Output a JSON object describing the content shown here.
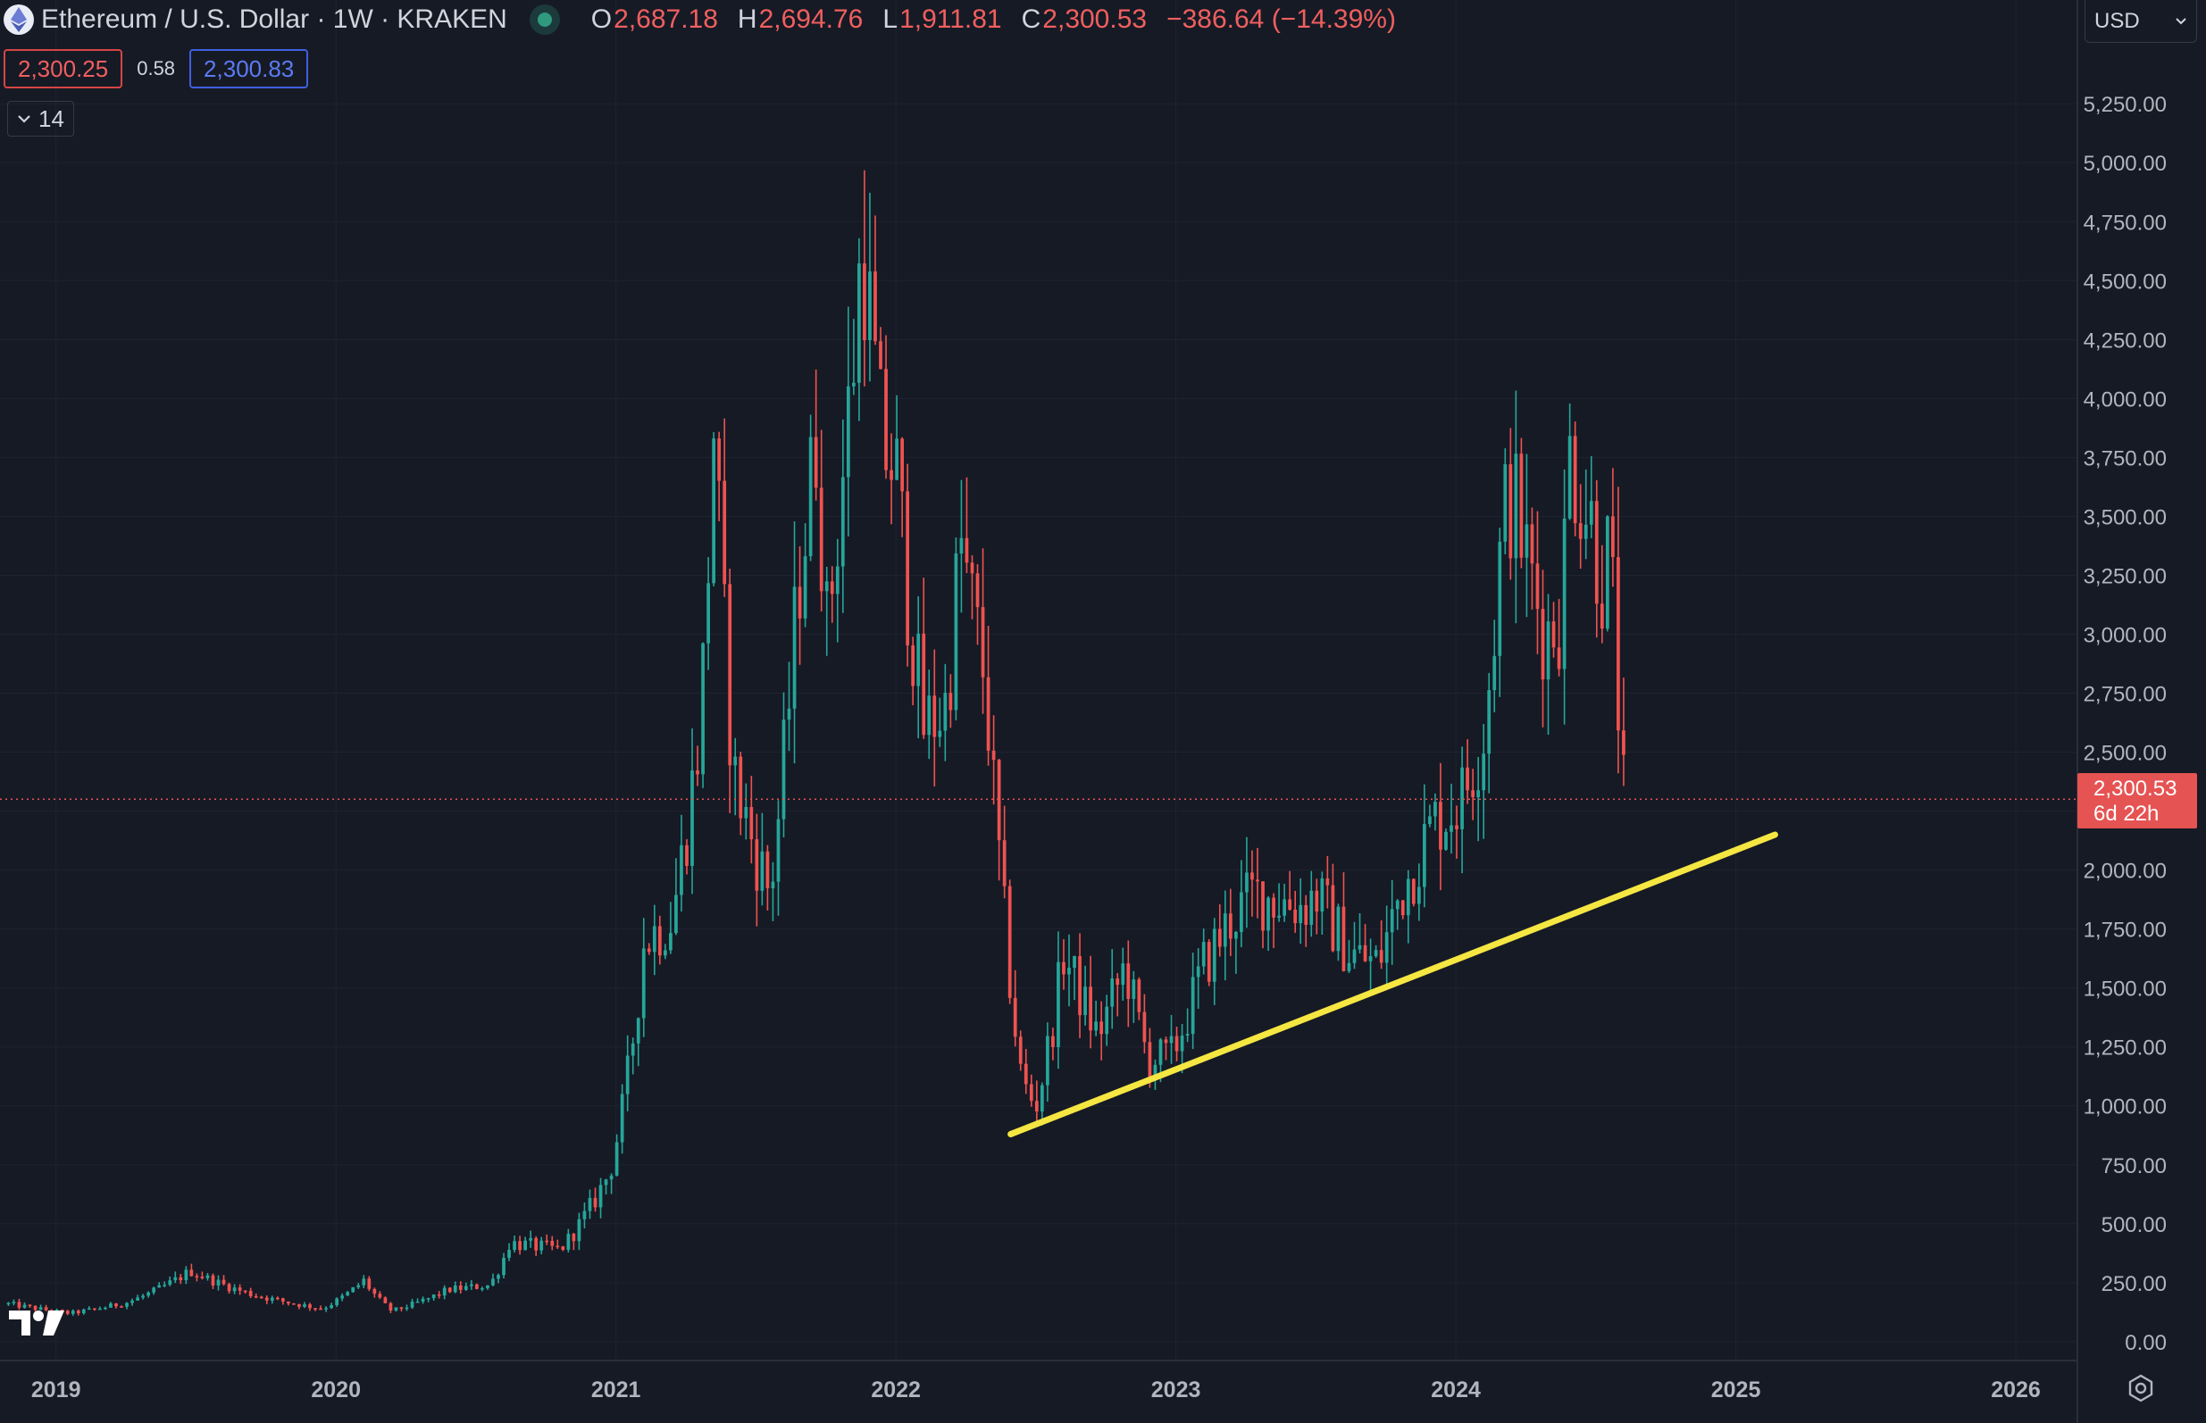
{
  "header": {
    "symbol_title": "Ethereum / U.S. Dollar · 1W · KRAKEN",
    "open_key": "O",
    "open": "2,687.18",
    "high_key": "H",
    "high": "2,694.76",
    "low_key": "L",
    "low": "1,911.81",
    "close_key": "C",
    "close": "2,300.53",
    "change": "−386.64 (−14.39%)",
    "bid": "2,300.25",
    "spread": "0.58",
    "ask": "2,300.83",
    "indicator_count": "14",
    "currency": "USD"
  },
  "last_price": {
    "price": "2,300.53",
    "countdown": "6d 22h",
    "value": 2300.53
  },
  "colors": {
    "up": "#26a69a",
    "down": "#ef5350",
    "background": "#161a25",
    "trendline": "#f5e642",
    "grid": "#1f2330"
  },
  "icons": {
    "logo": "ethereum-logo-icon",
    "status": "live-dot-icon",
    "toggle": "chevron-down-icon",
    "select": "chevron-down-icon",
    "brand": "tradingview-logo-icon",
    "settings": "settings-icon"
  },
  "chart_data": {
    "type": "candlestick",
    "interval": "1W",
    "exchange": "KRAKEN",
    "y_axis": {
      "ticks": [
        0,
        250,
        500,
        750,
        1000,
        1250,
        1500,
        1750,
        2000,
        2250,
        2500,
        2750,
        3000,
        3250,
        3500,
        3750,
        4000,
        4250,
        4500,
        4750,
        5000,
        5250
      ],
      "tick_labels": [
        "0.00",
        "250.00",
        "500.00",
        "750.00",
        "1,000.00",
        "1,250.00",
        "1,500.00",
        "1,750.00",
        "2,000.00",
        "",
        "2,500.00",
        "2,750.00",
        "3,000.00",
        "3,250.00",
        "3,500.00",
        "3,750.00",
        "4,000.00",
        "4,250.00",
        "4,500.00",
        "4,750.00",
        "5,000.00",
        "5,250.00"
      ],
      "ylim": [
        -80,
        5690
      ]
    },
    "x_axis": {
      "ticks": [
        2019,
        2020,
        2021,
        2022,
        2023,
        2024,
        2025,
        2026
      ],
      "tick_labels": [
        "2019",
        "2020",
        "2021",
        "2022",
        "2023",
        "2024",
        "2025",
        "2026"
      ],
      "xlim": [
        2018.8,
        2026.22
      ]
    },
    "key_points": [
      {
        "x": 2018.83,
        "y": 160
      },
      {
        "x": 2019.05,
        "y": 120
      },
      {
        "x": 2019.25,
        "y": 165
      },
      {
        "x": 2019.48,
        "y": 300
      },
      {
        "x": 2019.7,
        "y": 200
      },
      {
        "x": 2019.95,
        "y": 140
      },
      {
        "x": 2020.1,
        "y": 260
      },
      {
        "x": 2020.2,
        "y": 130
      },
      {
        "x": 2020.4,
        "y": 220
      },
      {
        "x": 2020.55,
        "y": 240
      },
      {
        "x": 2020.62,
        "y": 420
      },
      {
        "x": 2020.8,
        "y": 390
      },
      {
        "x": 2020.98,
        "y": 730
      },
      {
        "x": 2021.1,
        "y": 1700
      },
      {
        "x": 2021.2,
        "y": 1800
      },
      {
        "x": 2021.3,
        "y": 2600
      },
      {
        "x": 2021.35,
        "y": 3900
      },
      {
        "x": 2021.42,
        "y": 2400
      },
      {
        "x": 2021.55,
        "y": 1900
      },
      {
        "x": 2021.65,
        "y": 3200
      },
      {
        "x": 2021.72,
        "y": 3900
      },
      {
        "x": 2021.75,
        "y": 3000
      },
      {
        "x": 2021.85,
        "y": 4200
      },
      {
        "x": 2021.88,
        "y": 4700
      },
      {
        "x": 2021.95,
        "y": 3800
      },
      {
        "x": 2022.0,
        "y": 3700
      },
      {
        "x": 2022.1,
        "y": 2600
      },
      {
        "x": 2022.18,
        "y": 2700
      },
      {
        "x": 2022.23,
        "y": 3400
      },
      {
        "x": 2022.32,
        "y": 2800
      },
      {
        "x": 2022.38,
        "y": 1900
      },
      {
        "x": 2022.45,
        "y": 1100
      },
      {
        "x": 2022.5,
        "y": 1000
      },
      {
        "x": 2022.6,
        "y": 1650
      },
      {
        "x": 2022.72,
        "y": 1300
      },
      {
        "x": 2022.82,
        "y": 1600
      },
      {
        "x": 2022.9,
        "y": 1200
      },
      {
        "x": 2022.98,
        "y": 1200
      },
      {
        "x": 2023.1,
        "y": 1600
      },
      {
        "x": 2023.2,
        "y": 1800
      },
      {
        "x": 2023.28,
        "y": 1900
      },
      {
        "x": 2023.45,
        "y": 1850
      },
      {
        "x": 2023.5,
        "y": 1900
      },
      {
        "x": 2023.62,
        "y": 1650
      },
      {
        "x": 2023.72,
        "y": 1600
      },
      {
        "x": 2023.8,
        "y": 1900
      },
      {
        "x": 2023.92,
        "y": 2200
      },
      {
        "x": 2024.02,
        "y": 2300
      },
      {
        "x": 2024.1,
        "y": 2600
      },
      {
        "x": 2024.17,
        "y": 3500
      },
      {
        "x": 2024.2,
        "y": 3600
      },
      {
        "x": 2024.32,
        "y": 3000
      },
      {
        "x": 2024.38,
        "y": 3100
      },
      {
        "x": 2024.4,
        "y": 3800
      },
      {
        "x": 2024.48,
        "y": 3500
      },
      {
        "x": 2024.53,
        "y": 3200
      },
      {
        "x": 2024.55,
        "y": 3400
      },
      {
        "x": 2024.58,
        "y": 2700
      },
      {
        "x": 2024.6,
        "y": 2300
      }
    ],
    "trendline": {
      "x1": 2022.41,
      "y1": 880,
      "x2": 2025.14,
      "y2": 2150
    },
    "last_price": 2300.53
  }
}
